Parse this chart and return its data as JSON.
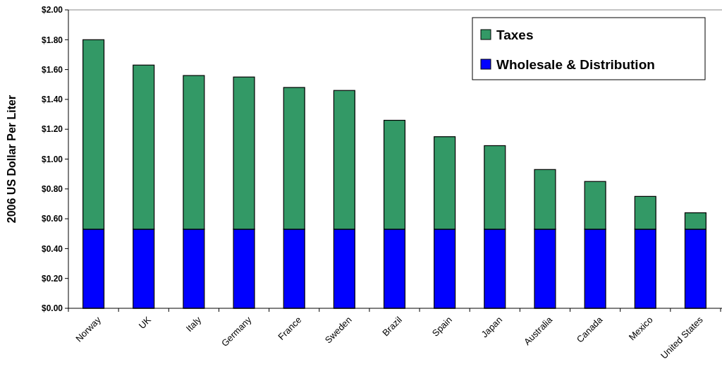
{
  "chart_data": {
    "type": "bar",
    "stacked": true,
    "ylabel": "2006 US Dollar Per Liter",
    "categories": [
      "Norway",
      "UK",
      "Italy",
      "Germany",
      "France",
      "Sweden",
      "Brazil",
      "Spain",
      "Japan",
      "Australia",
      "Canada",
      "Mexico",
      "United States"
    ],
    "series": [
      {
        "name": "Wholesale & Distribution",
        "color": "#0000ff",
        "values": [
          0.53,
          0.53,
          0.53,
          0.53,
          0.53,
          0.53,
          0.53,
          0.53,
          0.53,
          0.53,
          0.53,
          0.53,
          0.53
        ]
      },
      {
        "name": "Taxes",
        "color": "#339966",
        "values": [
          1.27,
          1.1,
          1.03,
          1.02,
          0.95,
          0.93,
          0.73,
          0.62,
          0.56,
          0.4,
          0.32,
          0.22,
          0.11
        ]
      }
    ],
    "ylim": [
      0,
      2
    ],
    "yticks": [
      {
        "value": 0,
        "label": "$0.00"
      },
      {
        "value": 0.2,
        "label": "$0.20"
      },
      {
        "value": 0.4,
        "label": "$0.40"
      },
      {
        "value": 0.6,
        "label": "$0.60"
      },
      {
        "value": 0.8,
        "label": "$0.80"
      },
      {
        "value": 1,
        "label": "$1.00"
      },
      {
        "value": 1.2,
        "label": "$1.20"
      },
      {
        "value": 1.4,
        "label": "$1.40"
      },
      {
        "value": 1.6,
        "label": "$1.60"
      },
      {
        "value": 1.8,
        "label": "$1.80"
      },
      {
        "value": 2,
        "label": "$2.00"
      }
    ],
    "legend": "top right"
  }
}
